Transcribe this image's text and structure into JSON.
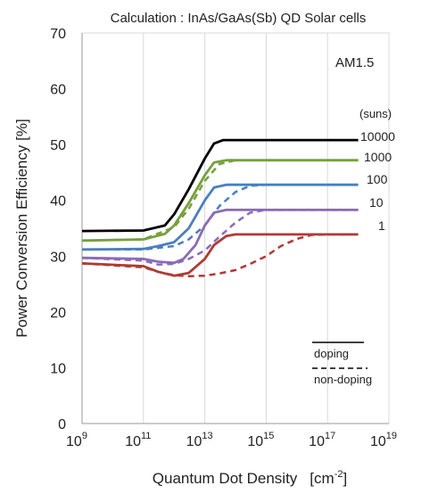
{
  "chart_data": {
    "type": "line",
    "title": "Calculation : InAs/GaAs(Sb) QD Solar cells",
    "xlabel": "Quantum Dot Density",
    "xlabel_unit": "[cm",
    "xlabel_unit_exp": "-2",
    "xlabel_unit_close": "]",
    "ylabel": "Power Conversion Efficiency [%]",
    "x_scale": "log",
    "xlim": [
      1000000000.0,
      1e+19
    ],
    "ylim": [
      0,
      70
    ],
    "x_ticks": [
      {
        "base": "10",
        "exp": "9",
        "value": 1000000000.0
      },
      {
        "base": "10",
        "exp": "11",
        "value": 100000000000.0
      },
      {
        "base": "10",
        "exp": "13",
        "value": 10000000000000.0
      },
      {
        "base": "10",
        "exp": "15",
        "value": 1000000000000000.0
      },
      {
        "base": "10",
        "exp": "17",
        "value": 1e+17
      },
      {
        "base": "10",
        "exp": "19",
        "value": 1e+19
      }
    ],
    "y_ticks": [
      0,
      10,
      20,
      30,
      40,
      50,
      60,
      70
    ],
    "grid": {
      "x": true,
      "y": false
    },
    "annotation": "AM1.5",
    "suns_header": "(suns)",
    "legend": {
      "placement": "bottom-right",
      "doping": "doping",
      "non_doping": "non-doping"
    },
    "series": [
      {
        "suns": "10000",
        "color": "#000000",
        "doping": [
          [
            1000000000.0,
            34.5
          ],
          [
            100000000000.0,
            34.6
          ],
          [
            500000000000.0,
            35.5
          ],
          [
            1000000000000.0,
            37.5
          ],
          [
            3000000000000.0,
            42
          ],
          [
            10000000000000.0,
            47.5
          ],
          [
            20000000000000.0,
            50.2
          ],
          [
            40000000000000.0,
            50.8
          ],
          [
            100000000000000.0,
            50.8
          ],
          [
            1e+18,
            50.8
          ]
        ],
        "non_doping": null
      },
      {
        "suns": "1000",
        "color": "#76a03c",
        "doping": [
          [
            1000000000.0,
            32.8
          ],
          [
            100000000000.0,
            33.0
          ],
          [
            500000000000.0,
            34.0
          ],
          [
            1000000000000.0,
            35.5
          ],
          [
            3000000000000.0,
            39.5
          ],
          [
            10000000000000.0,
            44.5
          ],
          [
            20000000000000.0,
            46.8
          ],
          [
            50000000000000.0,
            47.2
          ],
          [
            1e+18,
            47.2
          ]
        ],
        "non_doping": [
          [
            1000000000.0,
            32.8
          ],
          [
            100000000000.0,
            33.0
          ],
          [
            1000000000000.0,
            35.2
          ],
          [
            3000000000000.0,
            38.5
          ],
          [
            10000000000000.0,
            43.5
          ],
          [
            30000000000000.0,
            46.5
          ],
          [
            100000000000000.0,
            47.2
          ],
          [
            1e+18,
            47.2
          ]
        ]
      },
      {
        "suns": "100",
        "color": "#4a7fc0",
        "doping": [
          [
            1000000000.0,
            31.2
          ],
          [
            100000000000.0,
            31.3
          ],
          [
            300000000000.0,
            31.8
          ],
          [
            1000000000000.0,
            32.5
          ],
          [
            3000000000000.0,
            35
          ],
          [
            10000000000000.0,
            40
          ],
          [
            20000000000000.0,
            42.3
          ],
          [
            50000000000000.0,
            42.8
          ],
          [
            1e+18,
            42.8
          ]
        ],
        "non_doping": [
          [
            1000000000.0,
            31.2
          ],
          [
            100000000000.0,
            31.2
          ],
          [
            1000000000000.0,
            31.8
          ],
          [
            3000000000000.0,
            33
          ],
          [
            10000000000000.0,
            35.5
          ],
          [
            30000000000000.0,
            39
          ],
          [
            100000000000000.0,
            41.5
          ],
          [
            300000000000000.0,
            42.6
          ],
          [
            1000000000000000.0,
            42.8
          ],
          [
            1e+18,
            42.8
          ]
        ]
      },
      {
        "suns": "10",
        "color": "#8a6bb8",
        "doping": [
          [
            1000000000.0,
            29.7
          ],
          [
            100000000000.0,
            29.5
          ],
          [
            300000000000.0,
            29.0
          ],
          [
            1000000000000.0,
            28.8
          ],
          [
            2000000000000.0,
            29.5
          ],
          [
            5000000000000.0,
            32
          ],
          [
            10000000000000.0,
            35.5
          ],
          [
            20000000000000.0,
            37.8
          ],
          [
            50000000000000.0,
            38.3
          ],
          [
            1e+18,
            38.3
          ]
        ],
        "non_doping": [
          [
            1000000000.0,
            29.7
          ],
          [
            100000000000.0,
            29.2
          ],
          [
            300000000000.0,
            28.5
          ],
          [
            1000000000000.0,
            28.6
          ],
          [
            3000000000000.0,
            29.5
          ],
          [
            10000000000000.0,
            31
          ],
          [
            30000000000000.0,
            33.5
          ],
          [
            100000000000000.0,
            36
          ],
          [
            300000000000000.0,
            37.8
          ],
          [
            1000000000000000.0,
            38.3
          ],
          [
            1e+18,
            38.3
          ]
        ]
      },
      {
        "suns": "1",
        "color": "#b03a35",
        "doping": [
          [
            1000000000.0,
            28.7
          ],
          [
            100000000000.0,
            28.2
          ],
          [
            300000000000.0,
            27.2
          ],
          [
            1000000000000.0,
            26.5
          ],
          [
            3000000000000.0,
            27.0
          ],
          [
            10000000000000.0,
            29.5
          ],
          [
            20000000000000.0,
            32.0
          ],
          [
            50000000000000.0,
            33.6
          ],
          [
            100000000000000.0,
            33.9
          ],
          [
            1e+18,
            33.9
          ]
        ],
        "non_doping": [
          [
            1000000000.0,
            28.7
          ],
          [
            100000000000.0,
            28.0
          ],
          [
            300000000000.0,
            27.2
          ],
          [
            1000000000000.0,
            26.6
          ],
          [
            3000000000000.0,
            26.4
          ],
          [
            10000000000000.0,
            26.5
          ],
          [
            30000000000000.0,
            26.9
          ],
          [
            100000000000000.0,
            27.5
          ],
          [
            300000000000000.0,
            28.6
          ],
          [
            1000000000000000.0,
            30
          ],
          [
            3000000000000000.0,
            31.8
          ],
          [
            1e+16,
            33.1
          ],
          [
            3e+16,
            33.8
          ],
          [
            1e+17,
            33.9
          ],
          [
            1e+18,
            33.9
          ]
        ]
      }
    ]
  }
}
